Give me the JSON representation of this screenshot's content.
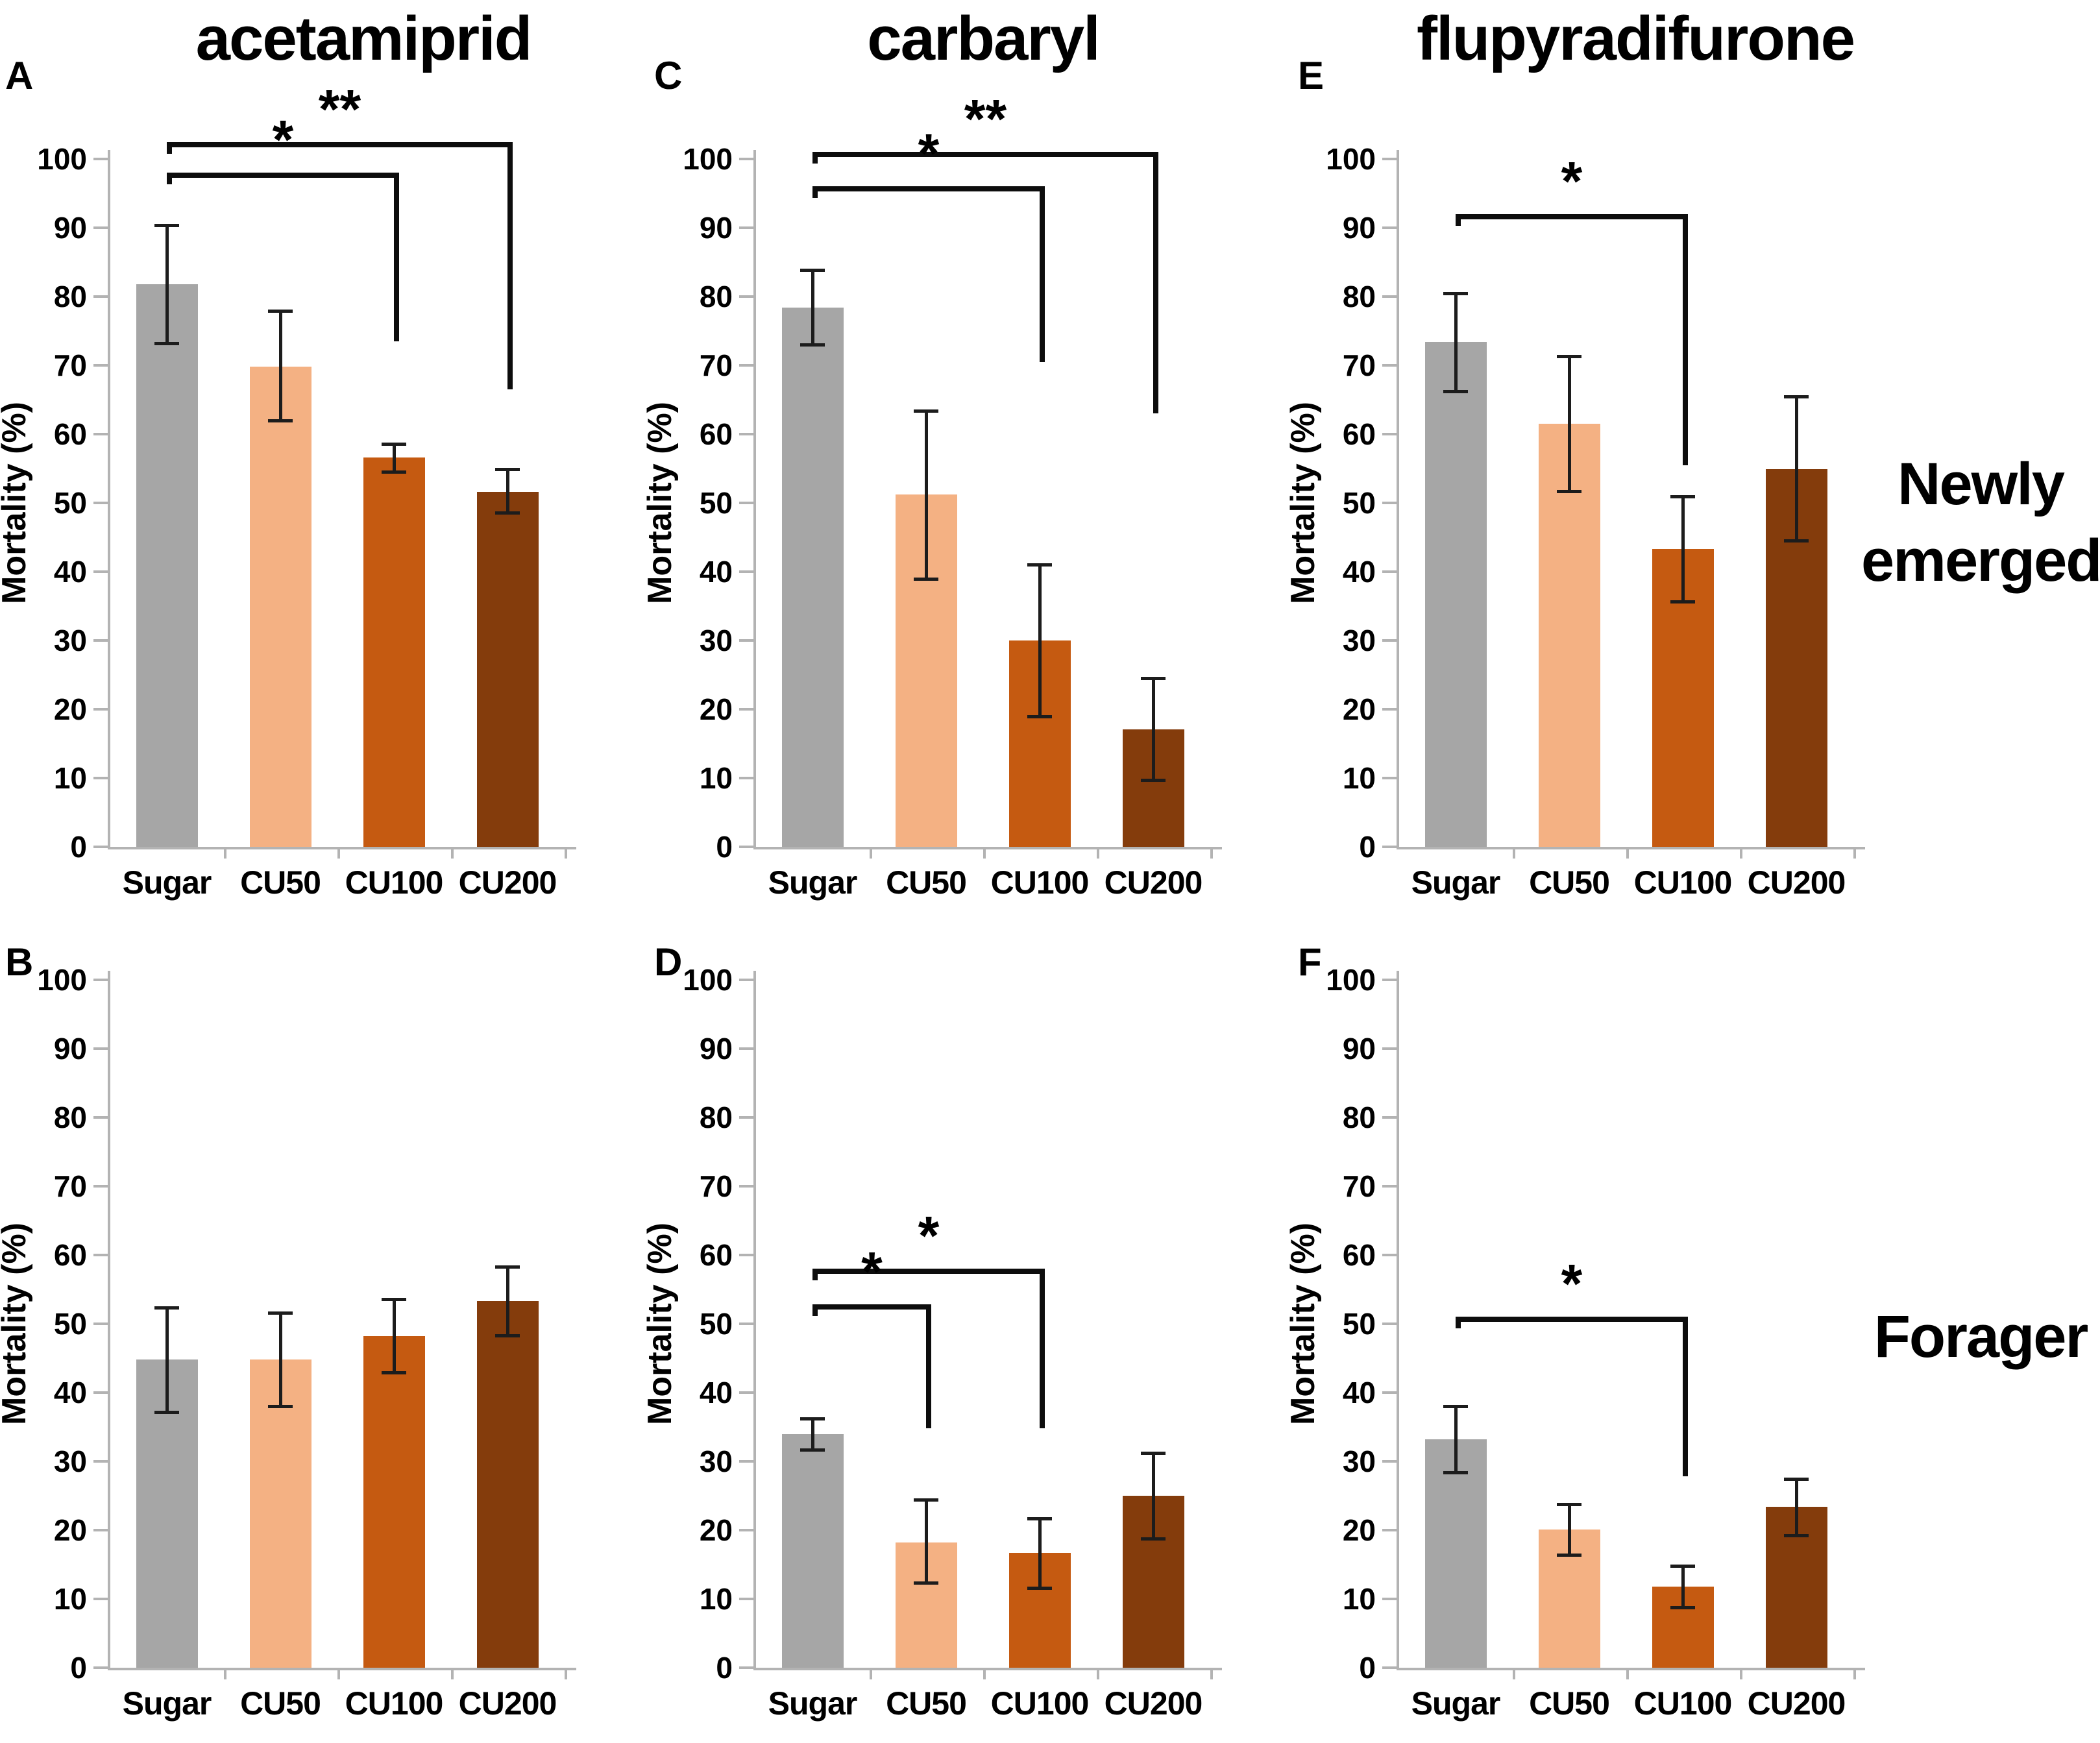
{
  "figure": {
    "column_titles": [
      "acetamiprid",
      "carbaryl",
      "flupyradifurone"
    ],
    "row_labels": [
      "Newly emerged",
      "Forager"
    ],
    "y_axis_label": "Mortality (%)",
    "categories": [
      "Sugar",
      "CU50",
      "CU100",
      "CU200"
    ],
    "bar_colors": {
      "Sugar": "#a6a6a6",
      "CU50": "#f4b183",
      "CU100": "#c55a11",
      "CU200": "#843c0c"
    },
    "axis": {
      "min": 0,
      "max": 100,
      "step": 10
    },
    "significance_symbols": {
      "p05": "*",
      "p01": "**"
    }
  },
  "chart_data": [
    {
      "type": "bar",
      "panel_label": "A",
      "pesticide": "acetamiprid",
      "bee_group": "Newly emerged",
      "grid": {
        "row": 0,
        "col": 0
      },
      "xlabel": "",
      "ylabel": "Mortality (%)",
      "ylim": [
        0,
        100
      ],
      "categories": [
        "Sugar",
        "CU50",
        "CU100",
        "CU200"
      ],
      "values": [
        81.8,
        69.8,
        56.6,
        51.6
      ],
      "error_low": [
        73.2,
        62.0,
        54.5,
        48.6
      ],
      "error_high": [
        90.4,
        77.9,
        58.6,
        54.9
      ],
      "significance": [
        {
          "from": "Sugar",
          "to": "CU200",
          "label": "**",
          "line_y": 102.5,
          "drop_to": 66.5
        },
        {
          "from": "Sugar",
          "to": "CU100",
          "label": "*",
          "line_y": 98.0,
          "drop_to": 73.5
        }
      ]
    },
    {
      "type": "bar",
      "panel_label": "C",
      "pesticide": "carbaryl",
      "bee_group": "Newly emerged",
      "grid": {
        "row": 0,
        "col": 1
      },
      "xlabel": "",
      "ylabel": "Mortality (%)",
      "ylim": [
        0,
        100
      ],
      "categories": [
        "Sugar",
        "CU50",
        "CU100",
        "CU200"
      ],
      "values": [
        78.4,
        51.2,
        30.0,
        17.1
      ],
      "error_low": [
        73.0,
        39.0,
        19.0,
        9.7
      ],
      "error_high": [
        83.9,
        63.4,
        41.0,
        24.5
      ],
      "significance": [
        {
          "from": "Sugar",
          "to": "CU200",
          "label": "**",
          "line_y": 101.0,
          "drop_to": 63.0
        },
        {
          "from": "Sugar",
          "to": "CU100",
          "label": "*",
          "line_y": 96.0,
          "drop_to": 70.5
        }
      ]
    },
    {
      "type": "bar",
      "panel_label": "E",
      "pesticide": "flupyradifurone",
      "bee_group": "Newly emerged",
      "grid": {
        "row": 0,
        "col": 2
      },
      "xlabel": "",
      "ylabel": "Mortality (%)",
      "ylim": [
        0,
        100
      ],
      "categories": [
        "Sugar",
        "CU50",
        "CU100",
        "CU200"
      ],
      "values": [
        73.4,
        61.5,
        43.3,
        54.9
      ],
      "error_low": [
        66.2,
        51.7,
        35.7,
        44.5
      ],
      "error_high": [
        80.5,
        71.3,
        50.9,
        65.5
      ],
      "significance": [
        {
          "from": "Sugar",
          "to": "CU100",
          "label": "*",
          "line_y": 92.0,
          "drop_to": 55.5
        }
      ]
    },
    {
      "type": "bar",
      "panel_label": "B",
      "pesticide": "acetamiprid",
      "bee_group": "Forager",
      "grid": {
        "row": 1,
        "col": 0
      },
      "xlabel": "",
      "ylabel": "Mortality (%)",
      "ylim": [
        0,
        100
      ],
      "categories": [
        "Sugar",
        "CU50",
        "CU100",
        "CU200"
      ],
      "values": [
        44.8,
        44.8,
        48.2,
        53.3
      ],
      "error_low": [
        37.2,
        38.0,
        42.9,
        48.3
      ],
      "error_high": [
        52.4,
        51.6,
        53.6,
        58.3
      ],
      "significance": []
    },
    {
      "type": "bar",
      "panel_label": "D",
      "pesticide": "carbaryl",
      "bee_group": "Forager",
      "grid": {
        "row": 1,
        "col": 1
      },
      "xlabel": "",
      "ylabel": "Mortality (%)",
      "ylim": [
        0,
        100
      ],
      "categories": [
        "Sugar",
        "CU50",
        "CU100",
        "CU200"
      ],
      "values": [
        34.0,
        18.2,
        16.7,
        25.0
      ],
      "error_low": [
        31.7,
        12.4,
        11.6,
        18.8
      ],
      "error_high": [
        36.2,
        24.4,
        21.7,
        31.2
      ],
      "significance": [
        {
          "from": "Sugar",
          "to": "CU100",
          "label": "*",
          "line_y": 58.0,
          "drop_to": 34.8
        },
        {
          "from": "Sugar",
          "to": "CU50",
          "label": "*",
          "line_y": 52.8,
          "drop_to": 34.8
        }
      ]
    },
    {
      "type": "bar",
      "panel_label": "F",
      "pesticide": "flupyradifurone",
      "bee_group": "Forager",
      "grid": {
        "row": 1,
        "col": 2
      },
      "xlabel": "",
      "ylabel": "Mortality (%)",
      "ylim": [
        0,
        100
      ],
      "categories": [
        "Sugar",
        "CU50",
        "CU100",
        "CU200"
      ],
      "values": [
        33.2,
        20.1,
        11.8,
        23.4
      ],
      "error_low": [
        28.4,
        16.4,
        8.8,
        19.2
      ],
      "error_high": [
        38.0,
        23.8,
        14.8,
        27.5
      ],
      "significance": [
        {
          "from": "Sugar",
          "to": "CU100",
          "label": "*",
          "line_y": 51.0,
          "drop_to": 27.8
        }
      ]
    }
  ]
}
